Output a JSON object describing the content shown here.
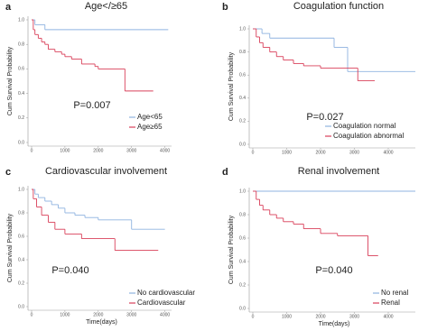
{
  "chart_data": [
    {
      "type": "step",
      "panel_label": "a",
      "title": "Age</≥65",
      "ylabel": "Cum Survival Probability",
      "annotation": "P=0.007",
      "xlim": [
        0,
        4200
      ],
      "xticks": [
        0,
        1000,
        2000,
        3000,
        4000
      ],
      "ylim": [
        0,
        1
      ],
      "yticks": [
        {
          "value": 0,
          "label": "0.0"
        },
        0.2,
        0.4,
        0.6,
        0.8,
        {
          "value": 1,
          "label": "1.0"
        }
      ],
      "series": [
        {
          "name": "Age<65",
          "color": "#8fb3e0",
          "x": [
            0,
            100,
            400,
            4100
          ],
          "values": [
            1,
            0.96,
            0.92,
            0.92
          ]
        },
        {
          "name": "Age≥65",
          "color": "#d9405a",
          "x": [
            0,
            50,
            100,
            200,
            300,
            400,
            500,
            700,
            900,
            1000,
            1200,
            1500,
            1900,
            2000,
            2800,
            3650
          ],
          "values": [
            1,
            0.92,
            0.88,
            0.85,
            0.82,
            0.8,
            0.76,
            0.74,
            0.72,
            0.7,
            0.68,
            0.64,
            0.62,
            0.6,
            0.42,
            0.42
          ]
        }
      ]
    },
    {
      "type": "step",
      "panel_label": "b",
      "title": "Coagulation function",
      "ylabel": "Cum Survival Probability",
      "annotation": "P=0.027",
      "xlim": [
        0,
        4800
      ],
      "xticks": [
        0,
        1000,
        2000,
        3000,
        4000
      ],
      "ylim": [
        0,
        1
      ],
      "yticks": [
        {
          "value": 0,
          "label": "0.0"
        },
        0.2,
        0.4,
        0.6,
        0.8,
        {
          "value": 1,
          "label": "1.0"
        }
      ],
      "series": [
        {
          "name": "Coagulation normal",
          "color": "#8fb3e0",
          "x": [
            0,
            270,
            500,
            2400,
            2800,
            4800
          ],
          "values": [
            1,
            0.96,
            0.92,
            0.84,
            0.63,
            0.63
          ]
        },
        {
          "name": "Coagulation abnormal",
          "color": "#d9405a",
          "x": [
            0,
            100,
            200,
            300,
            500,
            700,
            900,
            1200,
            1500,
            2000,
            3100,
            3600
          ],
          "values": [
            1,
            0.93,
            0.88,
            0.84,
            0.8,
            0.76,
            0.73,
            0.7,
            0.68,
            0.66,
            0.55,
            0.55
          ]
        }
      ]
    },
    {
      "type": "step",
      "panel_label": "c",
      "title": "Cardiovascular involvement",
      "ylabel": "Cum Survival Probability",
      "xlabel": "Time(days)",
      "annotation": "P=0.040",
      "xlim": [
        0,
        4200
      ],
      "xticks": [
        0,
        1000,
        2000,
        3000,
        4000
      ],
      "ylim": [
        0,
        1
      ],
      "yticks": [
        {
          "value": 0,
          "label": "0.0"
        },
        0.2,
        0.4,
        0.6,
        0.8,
        {
          "value": 1,
          "label": "1.0"
        }
      ],
      "series": [
        {
          "name": "No cardiovascular",
          "color": "#8fb3e0",
          "x": [
            0,
            100,
            200,
            400,
            600,
            800,
            1000,
            1300,
            1600,
            2000,
            3000,
            4000
          ],
          "values": [
            1,
            0.96,
            0.93,
            0.9,
            0.87,
            0.84,
            0.8,
            0.78,
            0.76,
            0.74,
            0.66,
            0.66
          ]
        },
        {
          "name": "Cardiovascular",
          "color": "#d9405a",
          "x": [
            0,
            50,
            150,
            300,
            500,
            700,
            1000,
            1500,
            2500,
            3800
          ],
          "values": [
            1,
            0.92,
            0.85,
            0.78,
            0.72,
            0.66,
            0.62,
            0.58,
            0.48,
            0.48
          ]
        }
      ]
    },
    {
      "type": "step",
      "panel_label": "d",
      "title": "Renal involvement",
      "ylabel": "Cum Survival Probability",
      "xlabel": "Time(days)",
      "annotation": "P=0.040",
      "xlim": [
        0,
        4800
      ],
      "xticks": [
        0,
        1000,
        2000,
        3000,
        4000
      ],
      "ylim": [
        0,
        1
      ],
      "yticks": [
        {
          "value": 0,
          "label": "0.0"
        },
        0.2,
        0.4,
        0.6,
        0.8,
        {
          "value": 1,
          "label": "1.0"
        }
      ],
      "series": [
        {
          "name": "No renal",
          "color": "#8fb3e0",
          "x": [
            0,
            4800
          ],
          "values": [
            1,
            1
          ]
        },
        {
          "name": "Renal",
          "color": "#d9405a",
          "x": [
            0,
            100,
            200,
            300,
            500,
            700,
            900,
            1200,
            1500,
            2000,
            2500,
            3400,
            3700
          ],
          "values": [
            1,
            0.93,
            0.88,
            0.84,
            0.8,
            0.77,
            0.74,
            0.72,
            0.68,
            0.64,
            0.62,
            0.45,
            0.45
          ]
        }
      ]
    }
  ]
}
